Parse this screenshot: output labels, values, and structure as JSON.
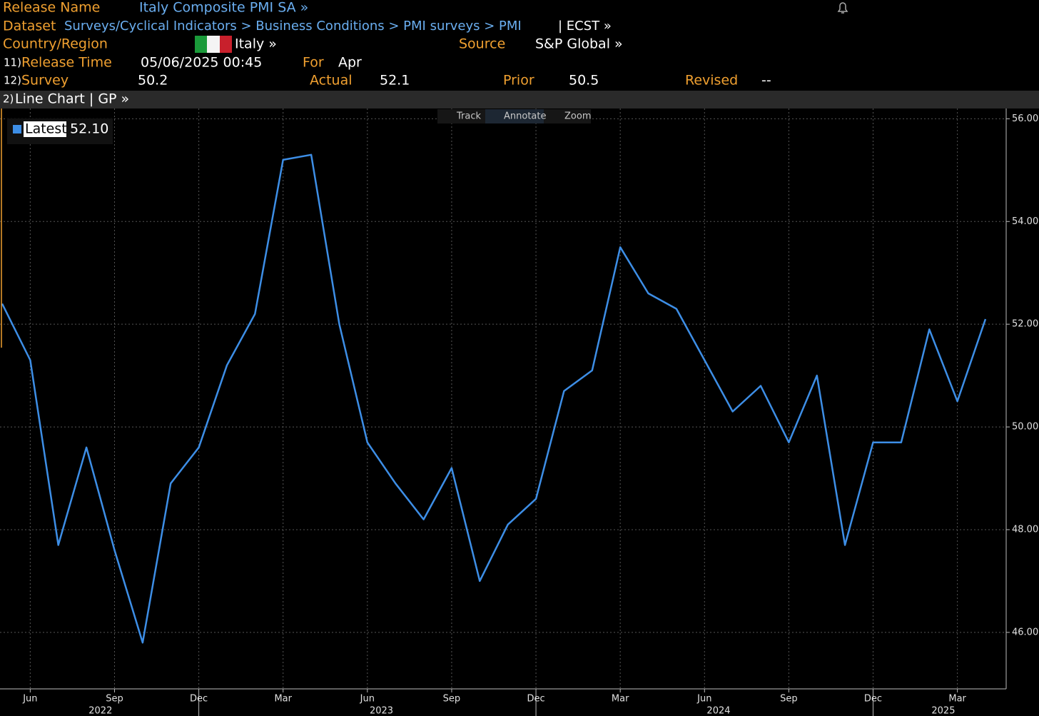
{
  "header": {
    "release_name_label": "Release Name",
    "release_name": "Italy Composite PMI SA »",
    "dataset_label": "Dataset",
    "dataset": "Surveys/Cyclical Indicators > Business Conditions > PMI surveys > PMI",
    "dataset_suffix": "| ECST »",
    "country_label": "Country/Region",
    "country": "Italy »",
    "source_label": "Source",
    "source": "S&P Global »",
    "release_time_num": "11)",
    "release_time_label": "Release Time",
    "release_time": "05/06/2025 00:45",
    "for_label": "For",
    "for": "Apr",
    "survey_num": "12)",
    "survey_label": "Survey",
    "survey": "50.2",
    "actual_label": "Actual",
    "actual": "52.1",
    "prior_label": "Prior",
    "prior": "50.5",
    "revised_label": "Revised",
    "revised": "--",
    "chart_num": "2)",
    "chart_bar": "Line Chart | GP »"
  },
  "toolbar": [
    "Track",
    "Annotate",
    "Zoom"
  ],
  "chart_data": {
    "type": "line",
    "categories": [
      null,
      "Jun",
      null,
      null,
      "Sep",
      null,
      null,
      "Dec",
      null,
      null,
      "Mar",
      null,
      null,
      "Jun",
      null,
      null,
      "Sep",
      null,
      null,
      "Dec",
      null,
      null,
      "Mar",
      null,
      null,
      "Jun",
      null,
      null,
      "Sep",
      null,
      null,
      "Dec",
      null,
      null,
      "Mar",
      null
    ],
    "years": [
      "2022",
      "2023",
      "2024",
      "2025"
    ],
    "year_starts": [
      0,
      8,
      20,
      32
    ],
    "series": [
      {
        "name": "Latest",
        "color": "#3d8ee6",
        "values": [
          52.4,
          51.3,
          47.7,
          49.6,
          47.6,
          45.8,
          48.9,
          49.6,
          51.2,
          52.2,
          55.2,
          55.3,
          52.0,
          49.7,
          48.9,
          48.2,
          49.2,
          47.0,
          48.1,
          48.6,
          50.7,
          51.1,
          53.5,
          52.6,
          52.3,
          51.3,
          50.3,
          50.8,
          49.7,
          51.0,
          47.7,
          49.7,
          49.7,
          51.9,
          50.5,
          52.1
        ]
      }
    ],
    "latest_label": "52.10",
    "ylim": [
      44.9,
      56.2
    ],
    "yticks": [
      {
        "value": 46,
        "label": "46.00"
      },
      {
        "value": 48,
        "label": "48.00"
      },
      {
        "value": 50,
        "label": "50.00"
      },
      {
        "value": 52,
        "label": "52.00"
      },
      {
        "value": 54,
        "label": "54.00"
      },
      {
        "value": 56,
        "label": "56.00"
      }
    ],
    "grid": true
  }
}
